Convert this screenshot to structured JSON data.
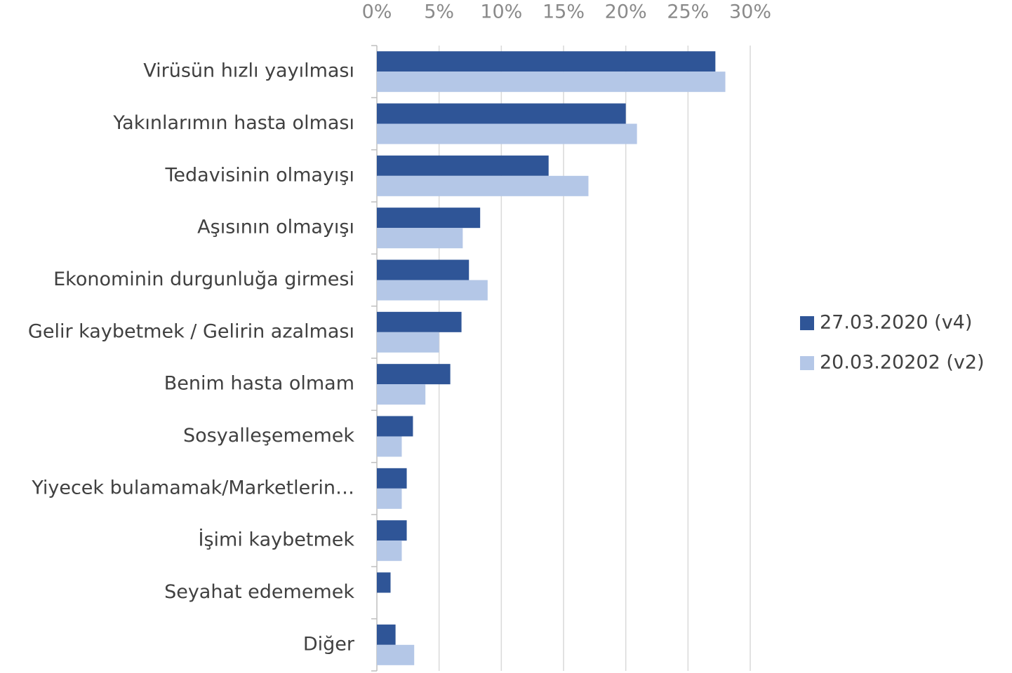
{
  "chart_data": {
    "type": "barh",
    "categories": [
      "Virüsün hızlı yayılması",
      "Yakınlarımın hasta olması",
      "Tedavisinin olmayışı",
      "Aşısının olmayışı",
      "Ekonominin durgunluğa girmesi",
      "Gelir kaybetmek / Gelirin azalması",
      "Benim hasta olmam",
      "Sosyalleşememek",
      "Yiyecek bulamamak/Marketlerin…",
      "İşimi kaybetmek",
      "Seyahat edememek",
      "Diğer"
    ],
    "series": [
      {
        "name": "27.03.2020 (v4)",
        "color": "#2f5597",
        "values": [
          27.2,
          20.0,
          13.8,
          8.3,
          7.4,
          6.8,
          5.9,
          2.9,
          2.4,
          2.4,
          1.1,
          1.5
        ]
      },
      {
        "name": "20.03.20202 (v2)",
        "color": "#b4c7e7",
        "values": [
          28.0,
          20.9,
          17.0,
          6.9,
          8.9,
          5.0,
          3.9,
          2.0,
          2.0,
          2.0,
          0,
          3.0
        ]
      }
    ],
    "xlim": [
      0,
      30
    ],
    "xticks": [
      {
        "value": 0,
        "label": "0%"
      },
      {
        "value": 5,
        "label": "5%"
      },
      {
        "value": 10,
        "label": "10%"
      },
      {
        "value": 15,
        "label": "15%"
      },
      {
        "value": 20,
        "label": "20%"
      },
      {
        "value": 25,
        "label": "25%"
      },
      {
        "value": 30,
        "label": "30%"
      }
    ],
    "grid": true,
    "legend": "right"
  }
}
